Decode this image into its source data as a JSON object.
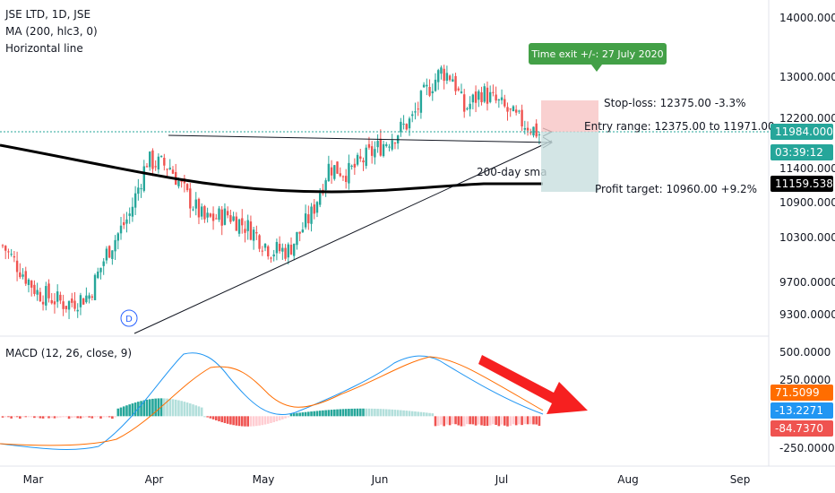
{
  "header": {
    "symbol": "JSE LTD, 1D, JSE",
    "indicator_ma": "MA (200, hlc3, 0)",
    "drawing_hline": "Horizontal line"
  },
  "macd_legend": "MACD (12, 26, close, 9)",
  "annotations": {
    "time_exit": "Time exit +/-: 27 July 2020",
    "stop_loss": "Stop-loss: 12375.00 -3.3%",
    "entry_range": "Entry range: 12375.00 to 11971.00",
    "sma_label": "200-day sma",
    "profit_target": "Profit target: 10960.00 +9.2%",
    "dividend_marker": "D"
  },
  "price_axis": {
    "ticks": [
      "14000.0000",
      "13000.0000",
      "12200.0000",
      "11400.0000",
      "10900.0000",
      "10300.0000",
      "9700.0000",
      "9300.0000"
    ],
    "current_price": "11984.0000",
    "countdown": "03:39:12",
    "sma_value": "11159.5388"
  },
  "macd_axis": {
    "ticks": [
      "500.0000",
      "250.0000",
      "-250.0000"
    ],
    "signal": "71.5099",
    "macd": "-13.2271",
    "hist": "-84.7370"
  },
  "time_axis": [
    "Mar",
    "Apr",
    "May",
    "Jun",
    "Jul",
    "Aug",
    "Sep"
  ],
  "colors": {
    "up": "#26a69a",
    "down": "#ef5350",
    "sma": "#000000",
    "macd_line": "#2196f3",
    "signal_line": "#ff6d00",
    "tag_green": "#43a047",
    "arrow": "#f62020"
  },
  "chart_data": {
    "type": "candlestick",
    "instrument": "JSE LTD",
    "interval": "1D",
    "y_range": [
      9100,
      14300
    ],
    "macd_range": [
      -330,
      620
    ],
    "levels": {
      "stop_loss": 12375,
      "entry_high": 12375,
      "entry_low": 11971,
      "profit_target": 10960,
      "last_price": 11984,
      "sma200": 11159.54
    }
  }
}
